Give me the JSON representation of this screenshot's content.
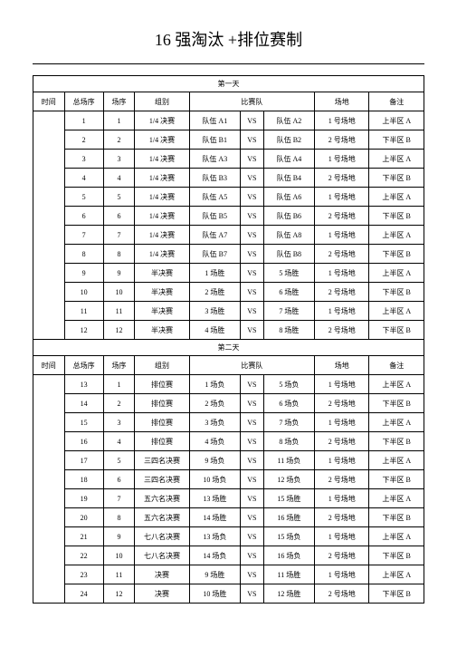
{
  "title": "16 强淘汰 +排位赛制",
  "headers": {
    "time": "时间",
    "total_seq": "总场序",
    "seq": "场序",
    "group": "组别",
    "match": "比赛队",
    "venue": "场地",
    "note": "备注"
  },
  "days": [
    {
      "label": "第一天",
      "rows": [
        {
          "total": "1",
          "seq": "1",
          "group": "1/4 决赛",
          "t1": "队伍 A1",
          "vs": "VS",
          "t2": "队伍 A2",
          "venue": "1 号场地",
          "note": "上半区 A"
        },
        {
          "total": "2",
          "seq": "2",
          "group": "1/4 决赛",
          "t1": "队伍 B1",
          "vs": "VS",
          "t2": "队伍 B2",
          "venue": "2 号场地",
          "note": "下半区 B"
        },
        {
          "total": "3",
          "seq": "3",
          "group": "1/4 决赛",
          "t1": "队伍 A3",
          "vs": "VS",
          "t2": "队伍 A4",
          "venue": "1 号场地",
          "note": "上半区 A"
        },
        {
          "total": "4",
          "seq": "4",
          "group": "1/4 决赛",
          "t1": "队伍 B3",
          "vs": "VS",
          "t2": "队伍 B4",
          "venue": "2 号场地",
          "note": "下半区 B"
        },
        {
          "total": "5",
          "seq": "5",
          "group": "1/4 决赛",
          "t1": "队伍 A5",
          "vs": "VS",
          "t2": "队伍 A6",
          "venue": "1 号场地",
          "note": "上半区 A"
        },
        {
          "total": "6",
          "seq": "6",
          "group": "1/4 决赛",
          "t1": "队伍 B5",
          "vs": "VS",
          "t2": "队伍 B6",
          "venue": "2 号场地",
          "note": "下半区 B"
        },
        {
          "total": "7",
          "seq": "7",
          "group": "1/4 决赛",
          "t1": "队伍 A7",
          "vs": "VS",
          "t2": "队伍 A8",
          "venue": "1 号场地",
          "note": "上半区 A"
        },
        {
          "total": "8",
          "seq": "8",
          "group": "1/4 决赛",
          "t1": "队伍 B7",
          "vs": "VS",
          "t2": "队伍 B8",
          "venue": "2 号场地",
          "note": "下半区 B"
        },
        {
          "total": "9",
          "seq": "9",
          "group": "半决赛",
          "t1": "1 场胜",
          "vs": "VS",
          "t2": "5 场胜",
          "venue": "1 号场地",
          "note": "上半区 A"
        },
        {
          "total": "10",
          "seq": "10",
          "group": "半决赛",
          "t1": "2 场胜",
          "vs": "VS",
          "t2": "6 场胜",
          "venue": "2 号场地",
          "note": "下半区 B"
        },
        {
          "total": "11",
          "seq": "11",
          "group": "半决赛",
          "t1": "3 场胜",
          "vs": "VS",
          "t2": "7 场胜",
          "venue": "1 号场地",
          "note": "上半区 A"
        },
        {
          "total": "12",
          "seq": "12",
          "group": "半决赛",
          "t1": "4 场胜",
          "vs": "VS",
          "t2": "8 场胜",
          "venue": "2 号场地",
          "note": "下半区 B"
        }
      ]
    },
    {
      "label": "第二天",
      "rows": [
        {
          "total": "13",
          "seq": "1",
          "group": "排位赛",
          "t1": "1 场负",
          "vs": "VS",
          "t2": "5 场负",
          "venue": "1 号场地",
          "note": "上半区 A"
        },
        {
          "total": "14",
          "seq": "2",
          "group": "排位赛",
          "t1": "2 场负",
          "vs": "VS",
          "t2": "6 场负",
          "venue": "2 号场地",
          "note": "下半区 B"
        },
        {
          "total": "15",
          "seq": "3",
          "group": "排位赛",
          "t1": "3 场负",
          "vs": "VS",
          "t2": "7 场负",
          "venue": "1 号场地",
          "note": "上半区 A"
        },
        {
          "total": "16",
          "seq": "4",
          "group": "排位赛",
          "t1": "4 场负",
          "vs": "VS",
          "t2": "8 场负",
          "venue": "2 号场地",
          "note": "下半区 B"
        },
        {
          "total": "17",
          "seq": "5",
          "group": "三四名决赛",
          "t1": "9 场负",
          "vs": "VS",
          "t2": "11 场负",
          "venue": "1 号场地",
          "note": "上半区 A"
        },
        {
          "total": "18",
          "seq": "6",
          "group": "三四名决赛",
          "t1": "10 场负",
          "vs": "VS",
          "t2": "12 场负",
          "venue": "2 号场地",
          "note": "下半区 B"
        },
        {
          "total": "19",
          "seq": "7",
          "group": "五六名决赛",
          "t1": "13 场胜",
          "vs": "VS",
          "t2": "15 场胜",
          "venue": "1 号场地",
          "note": "上半区 A"
        },
        {
          "total": "20",
          "seq": "8",
          "group": "五六名决赛",
          "t1": "14 场胜",
          "vs": "VS",
          "t2": "16 场胜",
          "venue": "2 号场地",
          "note": "下半区 B"
        },
        {
          "total": "21",
          "seq": "9",
          "group": "七八名决赛",
          "t1": "13 场负",
          "vs": "VS",
          "t2": "15 场负",
          "venue": "1 号场地",
          "note": "上半区 A"
        },
        {
          "total": "22",
          "seq": "10",
          "group": "七八名决赛",
          "t1": "14 场负",
          "vs": "VS",
          "t2": "16 场负",
          "venue": "2 号场地",
          "note": "下半区 B"
        },
        {
          "total": "23",
          "seq": "11",
          "group": "决赛",
          "t1": "9 场胜",
          "vs": "VS",
          "t2": "11 场胜",
          "venue": "1 号场地",
          "note": "上半区 A"
        },
        {
          "total": "24",
          "seq": "12",
          "group": "决赛",
          "t1": "10 场胜",
          "vs": "VS",
          "t2": "12 场胜",
          "venue": "2 号场地",
          "note": "下半区 B"
        }
      ]
    }
  ]
}
